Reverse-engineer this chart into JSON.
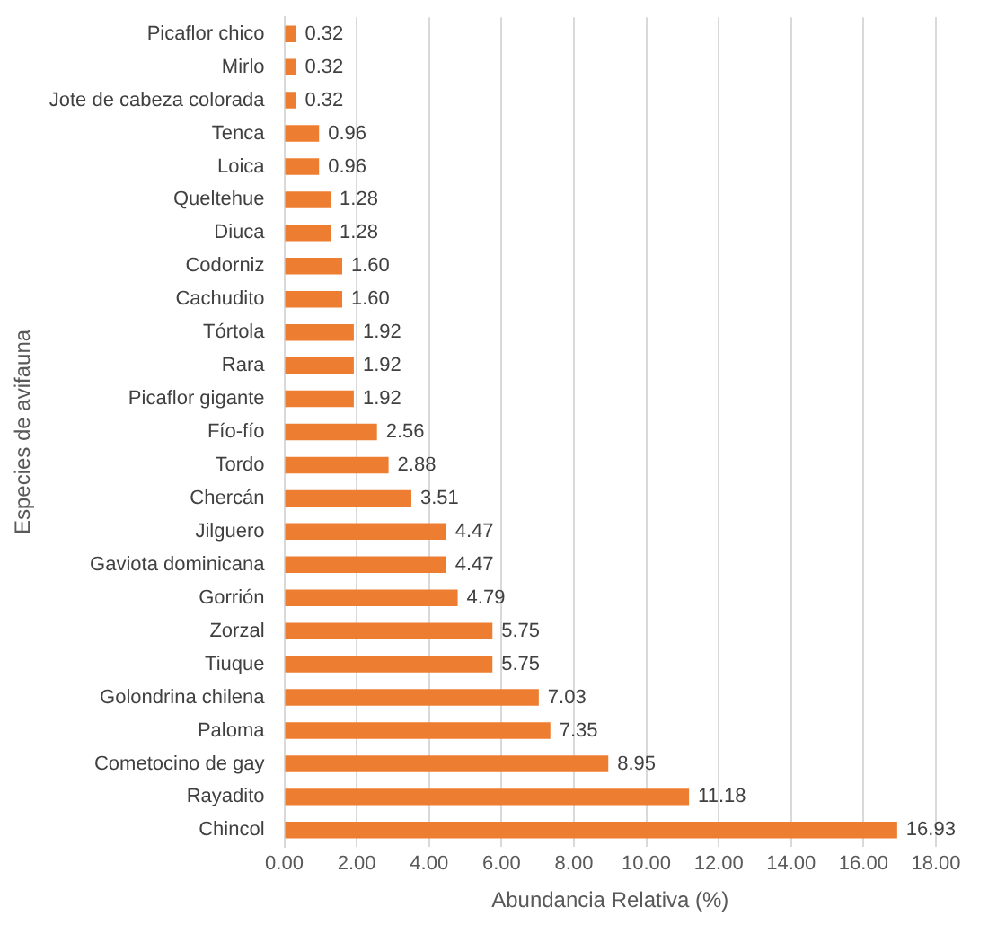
{
  "chart_data": {
    "type": "bar",
    "orientation": "horizontal",
    "xlabel": "Abundancia Relativa (%)",
    "ylabel": "Especies de avifauna",
    "categories": [
      "Picaflor chico",
      "Mirlo",
      "Jote de cabeza colorada",
      "Tenca",
      "Loica",
      "Queltehue",
      "Diuca",
      "Codorniz",
      "Cachudito",
      "Tórtola",
      "Rara",
      "Picaflor gigante",
      "Fío-fío",
      "Tordo",
      "Chercán",
      "Jilguero",
      "Gaviota dominicana",
      "Gorrión",
      "Zorzal",
      "Tiuque",
      "Golondrina chilena",
      "Paloma",
      "Cometocino de gay",
      "Rayadito",
      "Chincol"
    ],
    "values": [
      0.32,
      0.32,
      0.32,
      0.96,
      0.96,
      1.28,
      1.28,
      1.6,
      1.6,
      1.92,
      1.92,
      1.92,
      2.56,
      2.88,
      3.51,
      4.47,
      4.47,
      4.79,
      5.75,
      5.75,
      7.03,
      7.35,
      8.95,
      11.18,
      16.93
    ],
    "value_labels": [
      "0.32",
      "0.32",
      "0.32",
      "0.96",
      "0.96",
      "1.28",
      "1.28",
      "1.60",
      "1.60",
      "1.92",
      "1.92",
      "1.92",
      "2.56",
      "2.88",
      "3.51",
      "4.47",
      "4.47",
      "4.79",
      "5.75",
      "5.75",
      "7.03",
      "7.35",
      "8.95",
      "11.18",
      "16.93"
    ],
    "color": "#ed7d31",
    "xlim": [
      0,
      18
    ],
    "xticks": [
      {
        "value": 0,
        "label": "0.00"
      },
      {
        "value": 2,
        "label": "2.00"
      },
      {
        "value": 4,
        "label": "4.00"
      },
      {
        "value": 6,
        "label": "6.00"
      },
      {
        "value": 8,
        "label": "8.00"
      },
      {
        "value": 10,
        "label": "10.00"
      },
      {
        "value": 12,
        "label": "12.00"
      },
      {
        "value": 14,
        "label": "14.00"
      },
      {
        "value": 16,
        "label": "16.00"
      },
      {
        "value": 18,
        "label": "18.00"
      }
    ],
    "grid": "x",
    "legend": false
  }
}
